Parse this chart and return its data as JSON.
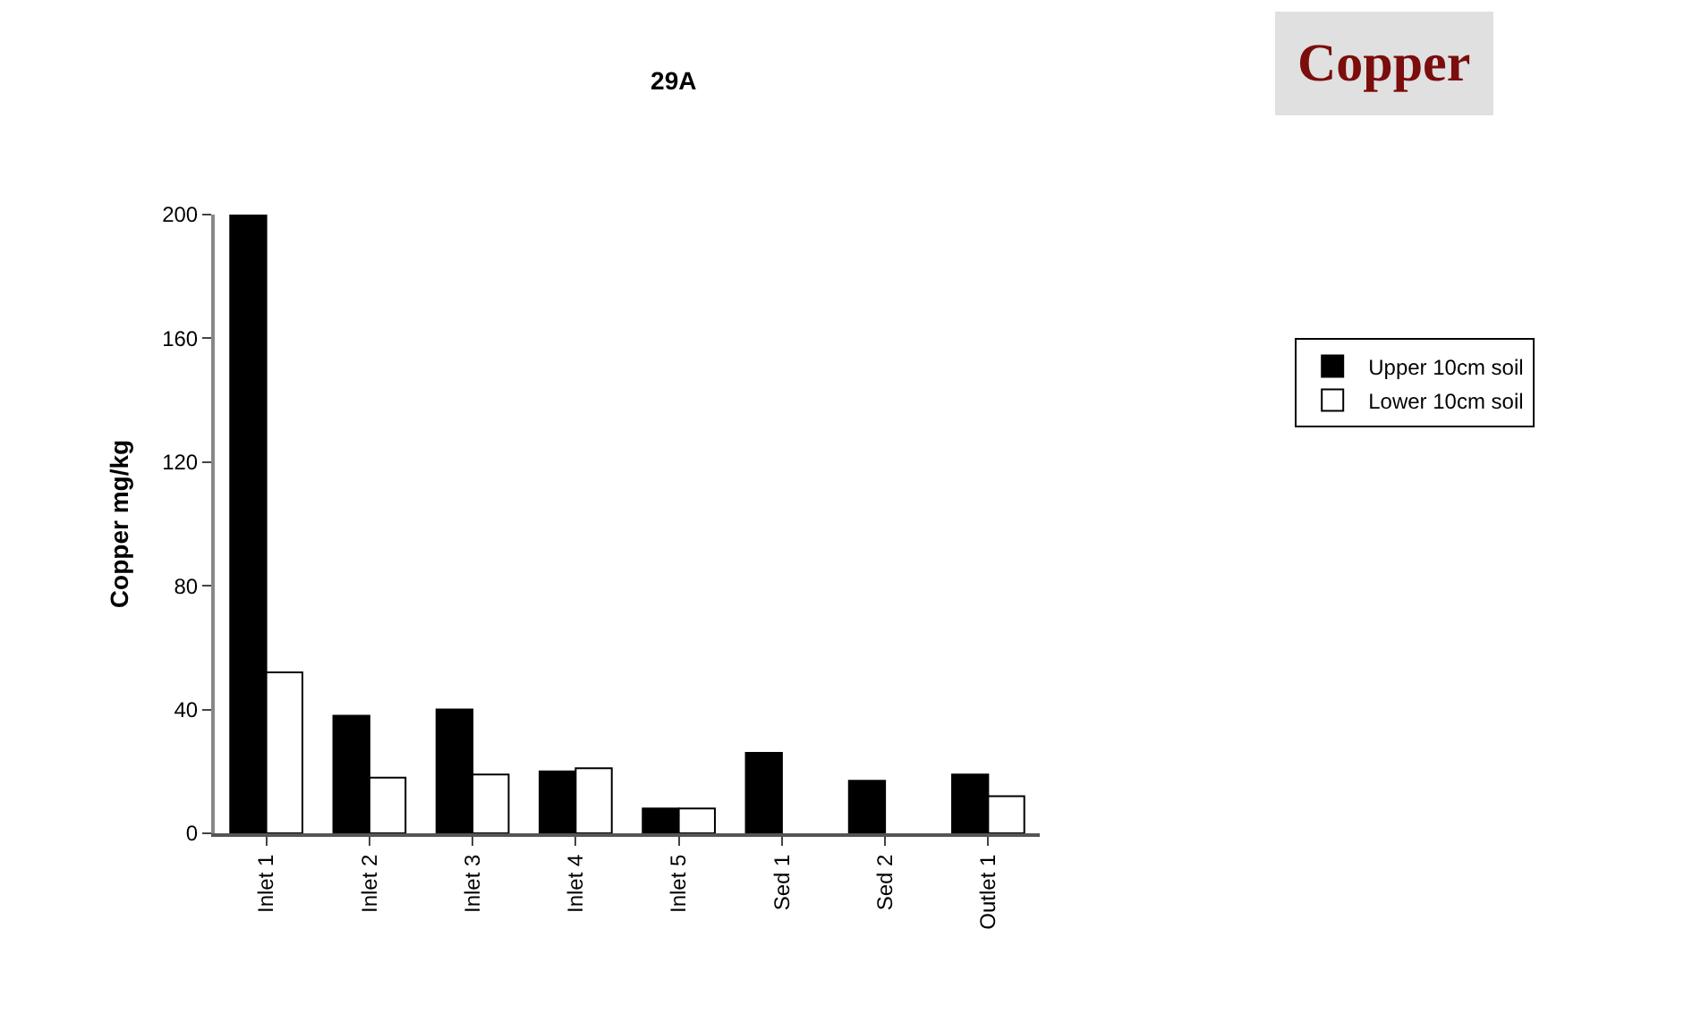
{
  "chart_data": {
    "type": "bar",
    "title": "29A",
    "ylabel": "Copper mg/kg",
    "annotations": [
      "Copper"
    ],
    "categories": [
      "Inlet 1",
      "Inlet 2",
      "Inlet 3",
      "Inlet 4",
      "Inlet 5",
      "Sed 1",
      "Sed 2",
      "Outlet 1"
    ],
    "series": [
      {
        "name": "Upper 10cm soil",
        "color": "#000000",
        "values": [
          200,
          38,
          40,
          20,
          8,
          26,
          17,
          19
        ]
      },
      {
        "name": "Lower 10cm soil",
        "color": "#ffffff",
        "values": [
          52,
          18,
          19,
          21,
          8,
          null,
          null,
          12
        ]
      }
    ],
    "ylim": [
      0,
      200
    ],
    "yticks": [
      0,
      40,
      80,
      120,
      160,
      200
    ],
    "legend": "right"
  }
}
